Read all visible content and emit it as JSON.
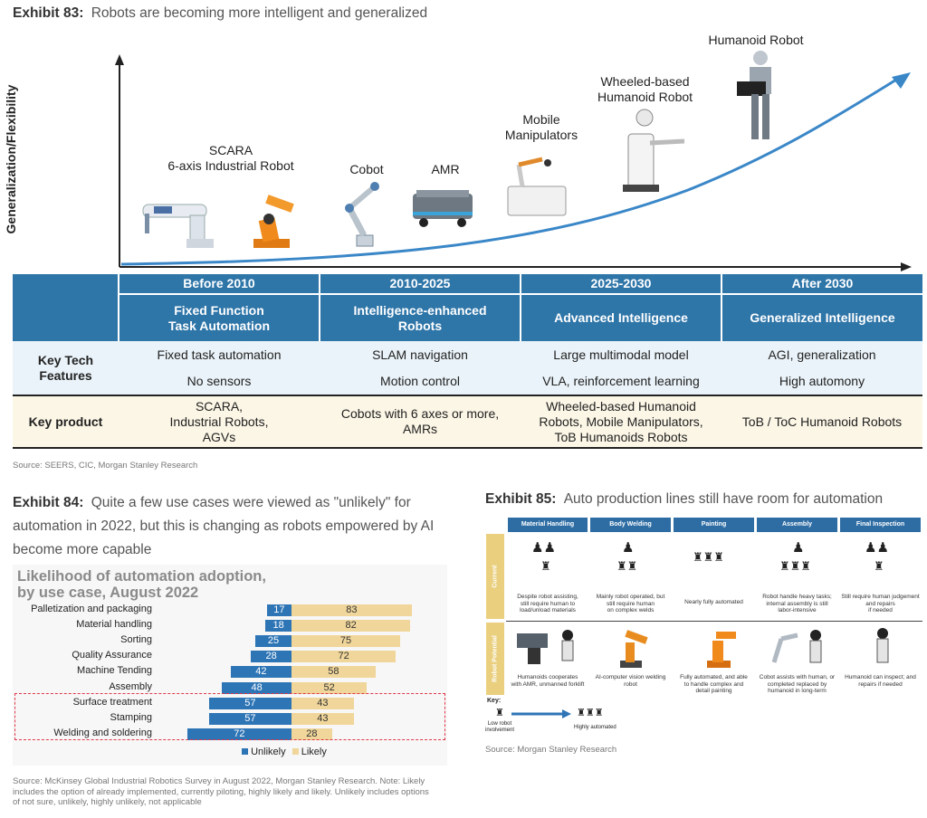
{
  "exhibit83": {
    "num": "Exhibit 83:",
    "title": "Robots are becoming more intelligent and generalized",
    "yaxis": "Generalization/Flexibility",
    "robots": [
      "SCARA\n6-axis Industrial Robot",
      "Cobot",
      "AMR",
      "Mobile\nManipulators",
      "Wheeled-based\nHumanoid Robot",
      "Humanoid Robot"
    ],
    "periods": [
      "Before 2010",
      "2010-2025",
      "2025-2030",
      "After 2030"
    ],
    "stages": [
      "Fixed Function\nTask Automation",
      "Intelligence-enhanced\nRobots",
      "Advanced Intelligence",
      "Generalized Intelligence"
    ],
    "key_tech_label": "Key Tech\nFeatures",
    "key_tech_row1": [
      "Fixed task automation",
      "SLAM navigation",
      "Large multimodal model",
      "AGI, generalization"
    ],
    "key_tech_row2": [
      "No sensors",
      "Motion control",
      "VLA, reinforcement learning",
      "High automony"
    ],
    "key_product_label": "Key product",
    "key_product": [
      "SCARA,\nIndustrial Robots,\nAGVs",
      "Cobots with 6 axes or more,\nAMRs",
      "Wheeled-based Humanoid\nRobots, Mobile Manipulators,\nToB Humanoids Robots",
      "ToB / ToC Humanoid Robots"
    ],
    "source": "Source: SEERS, CIC, Morgan Stanley Research"
  },
  "exhibit84": {
    "num": "Exhibit 84:",
    "title": "Quite a few use cases were viewed as \"unlikely\" for automation in 2022, but this is changing as robots empowered by AI become more capable",
    "source": "Source: McKinsey Global Industrial Robotics Survey in August 2022, Morgan Stanley Research. Note: Likely includes the option of already implemented, currently piloting, highly likely and likely. Unlikely includes options of not sure, unlikely, highly unlikely, not applicable"
  },
  "chart_data": {
    "type": "bar",
    "title": "Likelihood of automation adoption,\nby use case, August 2022",
    "categories": [
      "Palletization and packaging",
      "Material handling",
      "Sorting",
      "Quality Assurance",
      "Machine Tending",
      "Assembly",
      "Surface treatment",
      "Stamping",
      "Welding and soldering"
    ],
    "series": [
      {
        "name": "Unlikely",
        "values": [
          17,
          18,
          25,
          28,
          42,
          48,
          57,
          57,
          72
        ],
        "color": "#2e75b6"
      },
      {
        "name": "Likely",
        "values": [
          83,
          82,
          75,
          72,
          58,
          52,
          43,
          43,
          28
        ],
        "color": "#f0d69a"
      }
    ],
    "stacked": true,
    "orientation": "horizontal",
    "highlighted": [
      "Surface treatment",
      "Stamping",
      "Welding and soldering"
    ],
    "legend": "bottom"
  },
  "exhibit85": {
    "num": "Exhibit 85:",
    "title": "Auto production lines still have room for automation",
    "columns": [
      "Material Handling",
      "Body Welding",
      "Painting",
      "Assembly",
      "Final Inspection"
    ],
    "row_labels": [
      "Current",
      "Robot Potential"
    ],
    "current": [
      "Despite robot assisting,\nstill require human to\nload/unload materials",
      "Mainly robot operated, but\nstill require human\non complex welds",
      "Nearly fully automated",
      "Robot handle heavy tasks;\ninternal assembly is still\nlabor-intensive",
      "Still require human judgement\nand repairs\nif needed"
    ],
    "potential": [
      "Humanoids cooperates\nwith AMR, unmanned forklift",
      "AI-computer vision welding\nrobot",
      "Fully automated, and able\nto handle complex and\ndetail painting",
      "Cobot assists with human, or\ncompleted replaced by\nhumanoid in long-term",
      "Humanoid can inspect; and\nrepairs if needed"
    ],
    "key_label": "Key:",
    "key_low": "Low robot\ninvolvement",
    "key_high": "Highly automated",
    "source": "Source: Morgan Stanley Research"
  }
}
